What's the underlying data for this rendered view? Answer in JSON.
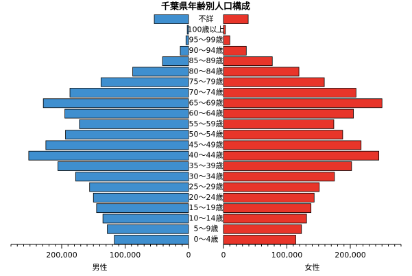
{
  "chart_data": {
    "type": "pyramid",
    "title": "千葉県年齢別人口構成",
    "categories": [
      "不詳",
      "100歳以上",
      "95〜99歳",
      "90〜94歳",
      "85〜89歳",
      "80〜84歳",
      "75〜79歳",
      "70〜74歳",
      "65〜69歳",
      "60〜64歳",
      "55〜59歳",
      "50〜54歳",
      "45〜49歳",
      "40〜44歳",
      "35〜39歳",
      "30〜34歳",
      "25〜29歳",
      "20〜24歳",
      "15〜19歳",
      "10〜14歳",
      "5〜9歳",
      "0〜4歳"
    ],
    "series": [
      {
        "name": "男性",
        "color": "#3f8fcf",
        "values": [
          54000,
          2000,
          4000,
          13000,
          41000,
          88000,
          138000,
          187000,
          229000,
          195000,
          172000,
          194000,
          225000,
          252000,
          206000,
          178000,
          156000,
          150000,
          145000,
          135000,
          128000,
          117000
        ]
      },
      {
        "name": "女性",
        "color": "#e8352a",
        "values": [
          39000,
          3000,
          10000,
          36000,
          77000,
          119000,
          159000,
          209000,
          250000,
          205000,
          174000,
          188000,
          217000,
          245000,
          202000,
          175000,
          151000,
          143000,
          138000,
          131000,
          123000,
          114000
        ]
      }
    ],
    "xlim": [
      0,
      280000
    ],
    "xticks": [
      0,
      {
        "value": 100000,
        "label": "100,000"
      },
      {
        "value": 200000,
        "label": "200,000"
      }
    ],
    "minor_xticks": [
      10000,
      20000,
      30000,
      40000,
      50000,
      60000,
      70000,
      80000,
      90000,
      110000,
      120000,
      130000,
      140000,
      150000,
      160000,
      170000,
      180000,
      190000,
      210000,
      220000,
      230000,
      240000,
      250000,
      260000,
      270000,
      280000
    ]
  }
}
